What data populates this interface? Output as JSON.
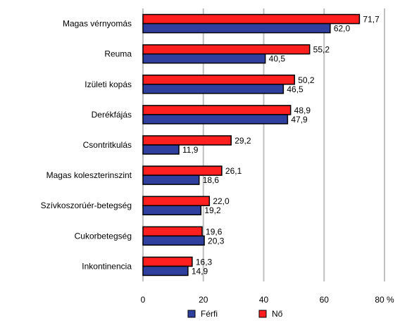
{
  "chart_data": {
    "type": "bar",
    "orientation": "horizontal",
    "categories": [
      "Magas vérnyomás",
      "Reuma",
      "Izületi kopás",
      "Derékfájás",
      "Csontritkulás",
      "Magas koleszterinszint",
      "Szívkoszorúér-betegség",
      "Cukorbetegség",
      "Inkontinencia"
    ],
    "series": [
      {
        "name": "Nő",
        "color": "#ff1f1f",
        "values": [
          71.7,
          55.2,
          50.2,
          48.9,
          29.2,
          26.1,
          22.0,
          19.6,
          16.3
        ],
        "labels": [
          "71,7",
          "55,2",
          "50,2",
          "48,9",
          "29,2",
          "26,1",
          "22,0",
          "19,6",
          "16,3"
        ]
      },
      {
        "name": "Férfi",
        "color": "#2f3f9e",
        "values": [
          62.0,
          40.5,
          46.5,
          47.9,
          11.9,
          18.6,
          19.2,
          20.3,
          14.9
        ],
        "labels": [
          "62,0",
          "40,5",
          "46,5",
          "47,9",
          "11,9",
          "18,6",
          "19,2",
          "20,3",
          "14,9"
        ]
      }
    ],
    "xlim": [
      0,
      80
    ],
    "xticks": [
      0,
      20,
      40,
      60,
      80
    ],
    "xtick_labels": [
      "0",
      "20",
      "40",
      "60",
      "80 %"
    ],
    "grid": true,
    "legend": {
      "placement": "bottom",
      "items": [
        {
          "name": "Férfi",
          "color": "#2f3f9e"
        },
        {
          "name": "Nő",
          "color": "#ff1f1f"
        }
      ]
    }
  }
}
